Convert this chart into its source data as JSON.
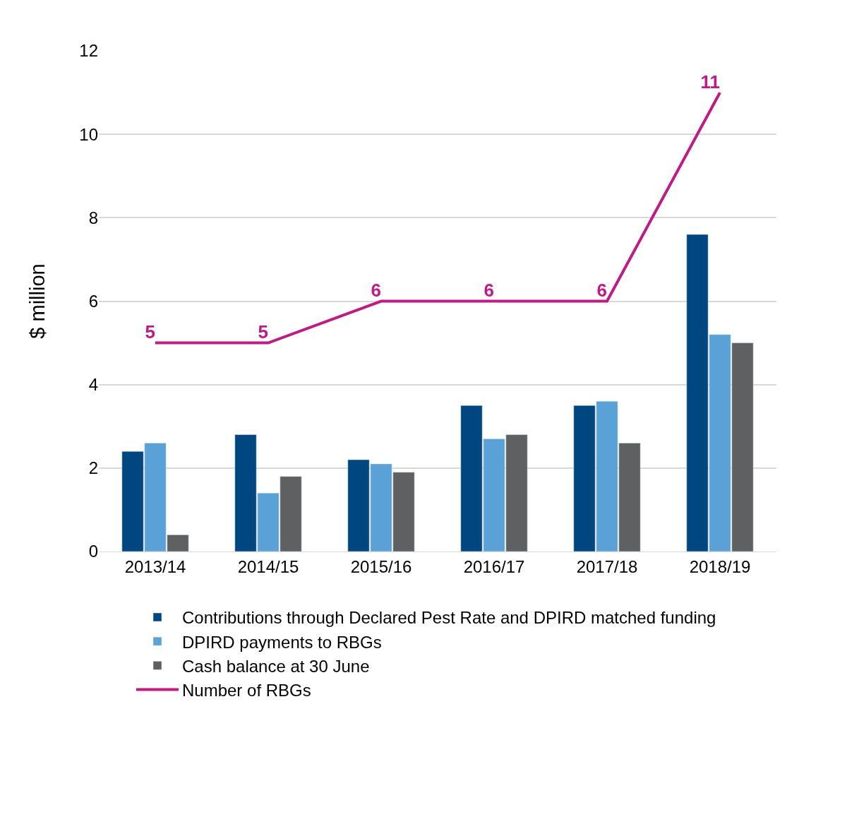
{
  "chart_data": {
    "type": "bar",
    "ylabel": "$ million",
    "categories": [
      "2013/14",
      "2014/15",
      "2015/16",
      "2016/17",
      "2017/18",
      "2018/19"
    ],
    "series": [
      {
        "name": "Contributions through Declared Pest Rate and DPIRD matched funding",
        "color": "#004680",
        "values": [
          2.4,
          2.8,
          2.2,
          3.5,
          3.5,
          7.6
        ]
      },
      {
        "name": "DPIRD payments to RBGs",
        "color": "#59a1d6",
        "values": [
          2.6,
          1.4,
          2.1,
          2.7,
          3.6,
          5.2
        ]
      },
      {
        "name": "Cash balance at 30 June",
        "color": "#5f6062",
        "values": [
          0.4,
          1.8,
          1.9,
          2.8,
          2.6,
          5.0
        ]
      },
      {
        "name": "Number of RBGs",
        "type": "line",
        "color": "#bf1a87",
        "values": [
          5,
          5,
          6,
          6,
          6,
          11
        ],
        "value_labels": [
          "5",
          "5",
          "6",
          "6",
          "6",
          "11"
        ]
      }
    ],
    "ylim": [
      0,
      12
    ],
    "yticks": [
      0,
      2,
      4,
      6,
      8,
      10,
      12
    ],
    "grid": "y",
    "legend": "bottom",
    "marker": "none",
    "line_style": "solid"
  }
}
